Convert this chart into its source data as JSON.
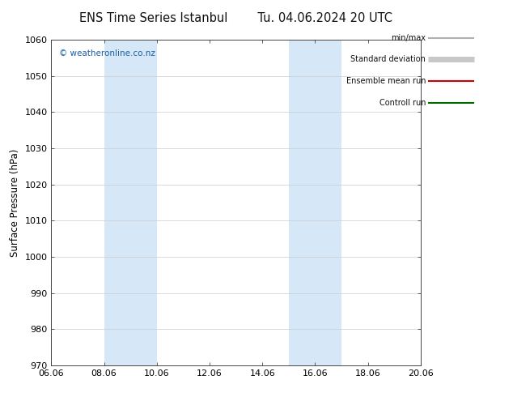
{
  "title_left": "ENS Time Series Istanbul",
  "title_right": "Tu. 04.06.2024 20 UTC",
  "ylabel": "Surface Pressure (hPa)",
  "ylim": [
    970,
    1060
  ],
  "yticks": [
    970,
    980,
    990,
    1000,
    1010,
    1020,
    1030,
    1040,
    1050,
    1060
  ],
  "xlim_start": 0,
  "xlim_end": 14,
  "xtick_labels": [
    "06.06",
    "08.06",
    "10.06",
    "12.06",
    "14.06",
    "16.06",
    "18.06",
    "20.06"
  ],
  "xtick_positions": [
    0,
    2,
    4,
    6,
    8,
    10,
    12,
    14
  ],
  "shaded_bands": [
    {
      "xmin": 2,
      "xmax": 4,
      "color": "#d6e8f7"
    },
    {
      "xmin": 9,
      "xmax": 11,
      "color": "#d6e8f7"
    }
  ],
  "watermark": "© weatheronline.co.nz",
  "legend_items": [
    {
      "label": "min/max",
      "color": "#b0b0b0",
      "lw": 1.5
    },
    {
      "label": "Standard deviation",
      "color": "#c8c8c8",
      "lw": 5
    },
    {
      "label": "Ensemble mean run",
      "color": "#cc0000",
      "lw": 1.5
    },
    {
      "label": "Controll run",
      "color": "#006600",
      "lw": 1.5
    }
  ],
  "bg_color": "#ffffff",
  "plot_bg_color": "#ffffff",
  "grid_color": "#cccccc",
  "title_fontsize": 10.5,
  "tick_fontsize": 8,
  "ylabel_fontsize": 8.5,
  "watermark_fontsize": 7.5
}
